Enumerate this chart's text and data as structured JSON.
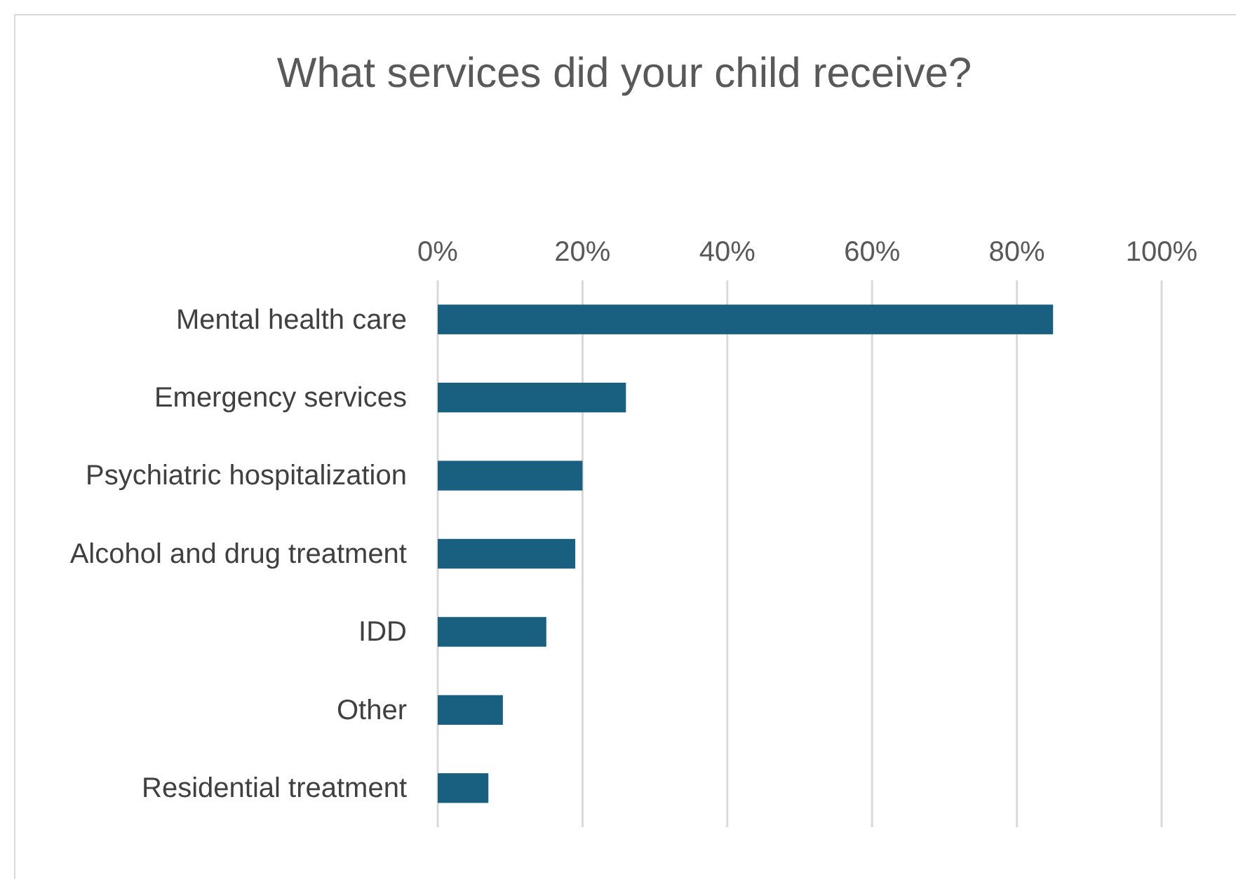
{
  "chart_data": {
    "type": "bar",
    "orientation": "horizontal",
    "title": "What services did your child receive?",
    "categories": [
      "Mental health care",
      "Emergency services",
      "Psychiatric hospitalization",
      "Alcohol and drug treatment",
      "IDD",
      "Other",
      "Residential treatment"
    ],
    "values": [
      85,
      26,
      20,
      19,
      15,
      9,
      7
    ],
    "color": "#185f80",
    "xlim": [
      0,
      100
    ],
    "xticks": [
      {
        "value": 0,
        "label": "0%"
      },
      {
        "value": 20,
        "label": "20%"
      },
      {
        "value": 40,
        "label": "40%"
      },
      {
        "value": 60,
        "label": "60%"
      },
      {
        "value": 80,
        "label": "80%"
      },
      {
        "value": 100,
        "label": "100%"
      }
    ],
    "grid": "x"
  }
}
